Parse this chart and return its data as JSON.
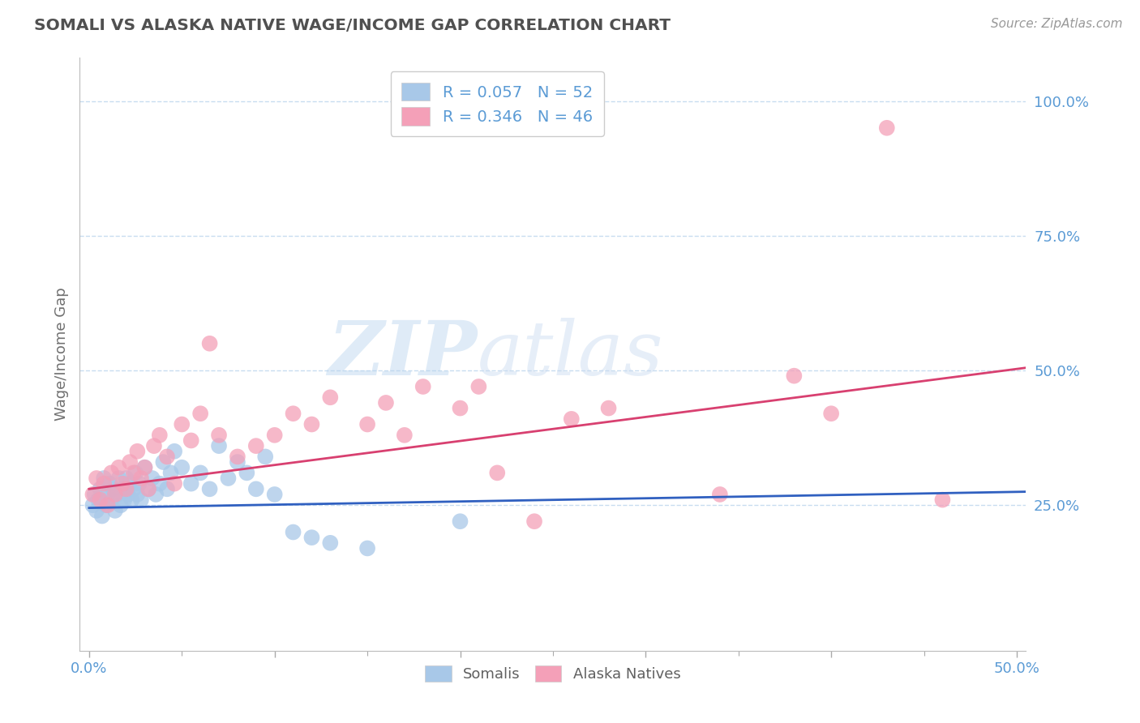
{
  "title": "SOMALI VS ALASKA NATIVE WAGE/INCOME GAP CORRELATION CHART",
  "source": "Source: ZipAtlas.com",
  "ylabel": "Wage/Income Gap",
  "xlabel": "",
  "xlim": [
    -0.005,
    0.505
  ],
  "ylim": [
    -0.02,
    1.08
  ],
  "ytick_labels": [
    "25.0%",
    "50.0%",
    "75.0%",
    "100.0%"
  ],
  "ytick_vals": [
    0.25,
    0.5,
    0.75,
    1.0
  ],
  "somali_color": "#a8c8e8",
  "alaska_color": "#f4a0b8",
  "somali_R": 0.057,
  "somali_N": 52,
  "alaska_R": 0.346,
  "alaska_N": 46,
  "trend_somali_color": "#3060c0",
  "trend_alaska_color": "#d84070",
  "watermark_zip": "ZIP",
  "watermark_atlas": "atlas",
  "background_color": "#ffffff",
  "title_color": "#505050",
  "axis_label_color": "#5b9bd5",
  "axis_tick_color": "#5b9bd5",
  "grid_color": "#c8ddf0",
  "somali_points_x": [
    0.002,
    0.003,
    0.004,
    0.005,
    0.006,
    0.007,
    0.008,
    0.009,
    0.01,
    0.011,
    0.012,
    0.013,
    0.014,
    0.015,
    0.016,
    0.017,
    0.018,
    0.019,
    0.02,
    0.021,
    0.022,
    0.023,
    0.024,
    0.025,
    0.026,
    0.027,
    0.028,
    0.03,
    0.032,
    0.034,
    0.036,
    0.038,
    0.04,
    0.042,
    0.044,
    0.046,
    0.05,
    0.055,
    0.06,
    0.065,
    0.07,
    0.075,
    0.08,
    0.085,
    0.09,
    0.095,
    0.1,
    0.11,
    0.12,
    0.13,
    0.15,
    0.2
  ],
  "somali_points_y": [
    0.25,
    0.27,
    0.24,
    0.26,
    0.28,
    0.23,
    0.3,
    0.25,
    0.27,
    0.29,
    0.26,
    0.28,
    0.24,
    0.27,
    0.3,
    0.25,
    0.28,
    0.26,
    0.3,
    0.27,
    0.29,
    0.26,
    0.28,
    0.31,
    0.27,
    0.29,
    0.26,
    0.32,
    0.28,
    0.3,
    0.27,
    0.29,
    0.33,
    0.28,
    0.31,
    0.35,
    0.32,
    0.29,
    0.31,
    0.28,
    0.36,
    0.3,
    0.33,
    0.31,
    0.28,
    0.34,
    0.27,
    0.2,
    0.19,
    0.18,
    0.17,
    0.22
  ],
  "alaska_points_x": [
    0.002,
    0.004,
    0.006,
    0.008,
    0.01,
    0.012,
    0.014,
    0.016,
    0.018,
    0.02,
    0.022,
    0.024,
    0.026,
    0.028,
    0.03,
    0.032,
    0.035,
    0.038,
    0.042,
    0.046,
    0.05,
    0.055,
    0.06,
    0.065,
    0.07,
    0.08,
    0.09,
    0.1,
    0.11,
    0.12,
    0.13,
    0.15,
    0.16,
    0.17,
    0.18,
    0.2,
    0.21,
    0.22,
    0.24,
    0.26,
    0.28,
    0.34,
    0.38,
    0.4,
    0.43,
    0.46
  ],
  "alaska_points_y": [
    0.27,
    0.3,
    0.26,
    0.29,
    0.25,
    0.31,
    0.27,
    0.32,
    0.29,
    0.28,
    0.33,
    0.31,
    0.35,
    0.3,
    0.32,
    0.28,
    0.36,
    0.38,
    0.34,
    0.29,
    0.4,
    0.37,
    0.42,
    0.55,
    0.38,
    0.34,
    0.36,
    0.38,
    0.42,
    0.4,
    0.45,
    0.4,
    0.44,
    0.38,
    0.47,
    0.43,
    0.47,
    0.31,
    0.22,
    0.41,
    0.43,
    0.27,
    0.49,
    0.42,
    0.95,
    0.26
  ],
  "somali_trend_x": [
    0.0,
    0.505
  ],
  "somali_trend_y": [
    0.245,
    0.275
  ],
  "alaska_trend_x": [
    0.0,
    0.505
  ],
  "alaska_trend_y": [
    0.28,
    0.505
  ]
}
